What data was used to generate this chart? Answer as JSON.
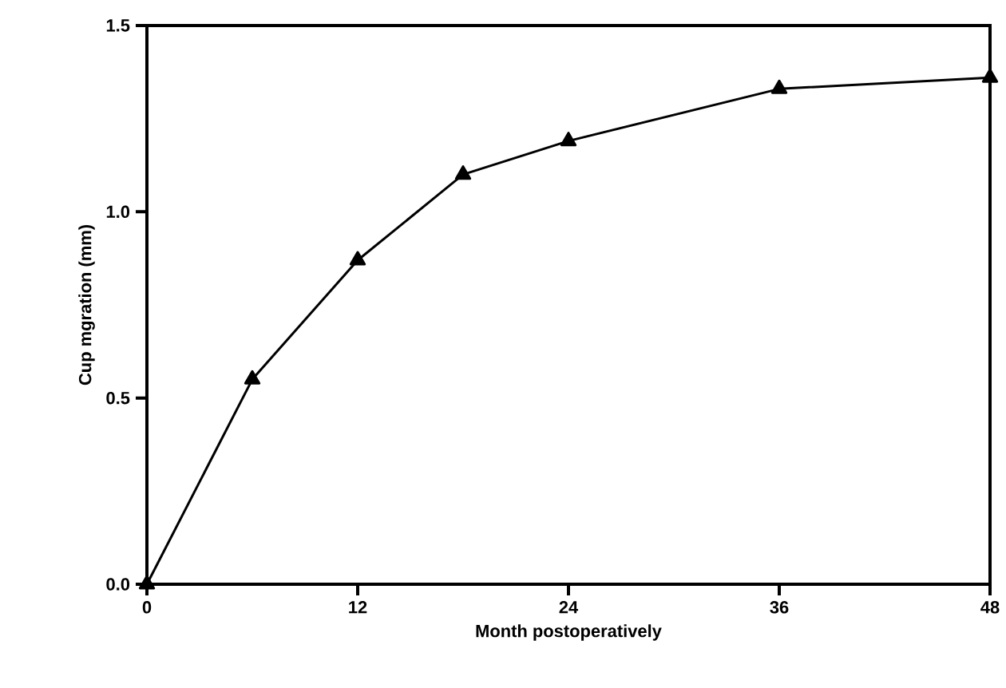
{
  "chart_data": {
    "type": "line",
    "xlabel": "Month postoperatively",
    "ylabel": "Cup mgration (mm)",
    "x": [
      0,
      6,
      12,
      18,
      24,
      36,
      48
    ],
    "series": [
      {
        "color": "#000000",
        "values": [
          0,
          0.55,
          0.87,
          1.1,
          1.19,
          1.33,
          1.36
        ]
      }
    ],
    "xlim": [
      0,
      48
    ],
    "ylim": [
      0,
      1.5
    ],
    "xticks": [
      0,
      12,
      24,
      36,
      48
    ],
    "yticks": [
      {
        "value": 0,
        "label": "0.0"
      },
      {
        "value": 0.5,
        "label": "0.5"
      },
      {
        "value": 1,
        "label": "1.0"
      },
      {
        "value": 1.5,
        "label": "1.5"
      }
    ],
    "grid": false,
    "marker": "triangle",
    "line_style": "solid"
  }
}
